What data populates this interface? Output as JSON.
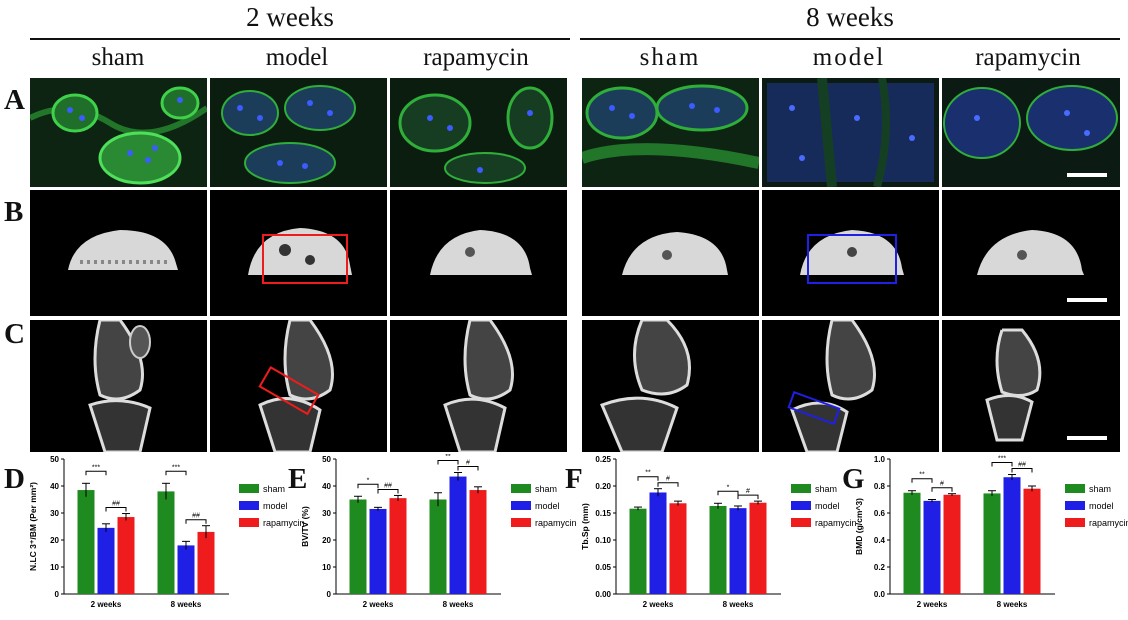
{
  "figure": {
    "groups": [
      "2 weeks",
      "8 weeks"
    ],
    "columns": [
      "sham",
      "model",
      "rapamycin",
      "sham",
      "model",
      "rapamycin"
    ],
    "rows": [
      "A",
      "B",
      "C"
    ]
  },
  "colors": {
    "sham": "#1f8a1f",
    "model": "#1f1fe6",
    "rapamycin": "#ee1c1c",
    "fluor_green": "#2fae3a",
    "fluor_blue": "#2546d6"
  },
  "chart_data": [
    {
      "panel": "D",
      "type": "bar",
      "ylabel": "N.LC 3⁺/BM (Per mm²)",
      "categories": [
        "2 weeks",
        "8 weeks"
      ],
      "ylim": [
        0,
        50
      ],
      "yticks": [
        "0",
        "10",
        "20",
        "30",
        "40",
        "50"
      ],
      "series": [
        {
          "name": "sham",
          "values": [
            38.5,
            38
          ],
          "errors": [
            2.5,
            3
          ]
        },
        {
          "name": "model",
          "values": [
            24.5,
            18
          ],
          "errors": [
            1.5,
            1.5
          ]
        },
        {
          "name": "rapamycin",
          "values": [
            28.5,
            23
          ],
          "errors": [
            1.3,
            2.3
          ]
        }
      ],
      "annotations": [
        {
          "group": "2 weeks",
          "pair": [
            "sham",
            "model"
          ],
          "label": "***"
        },
        {
          "group": "2 weeks",
          "pair": [
            "model",
            "rapamycin"
          ],
          "label": "##"
        },
        {
          "group": "8 weeks",
          "pair": [
            "sham",
            "model"
          ],
          "label": "***"
        },
        {
          "group": "8 weeks",
          "pair": [
            "model",
            "rapamycin"
          ],
          "label": "##"
        }
      ]
    },
    {
      "panel": "E",
      "type": "bar",
      "ylabel": "BV/TV (%)",
      "categories": [
        "2 weeks",
        "8 weeks"
      ],
      "ylim": [
        0,
        50
      ],
      "yticks": [
        "0",
        "10",
        "20",
        "30",
        "40",
        "50"
      ],
      "series": [
        {
          "name": "sham",
          "values": [
            35,
            35
          ],
          "errors": [
            1.2,
            2.5
          ]
        },
        {
          "name": "model",
          "values": [
            31.5,
            43.5
          ],
          "errors": [
            0.6,
            1.5
          ]
        },
        {
          "name": "rapamycin",
          "values": [
            35.5,
            38.5
          ],
          "errors": [
            1,
            1.2
          ]
        }
      ],
      "annotations": [
        {
          "group": "2 weeks",
          "pair": [
            "sham",
            "model"
          ],
          "label": "*"
        },
        {
          "group": "2 weeks",
          "pair": [
            "model",
            "rapamycin"
          ],
          "label": "##"
        },
        {
          "group": "8 weeks",
          "pair": [
            "sham",
            "model"
          ],
          "label": "**"
        },
        {
          "group": "8 weeks",
          "pair": [
            "model",
            "rapamycin"
          ],
          "label": "#"
        }
      ]
    },
    {
      "panel": "F",
      "type": "bar",
      "ylabel": "Tb.Sp (mm)",
      "categories": [
        "2 weeks",
        "8 weeks"
      ],
      "ylim": [
        0,
        0.25
      ],
      "yticks": [
        "0.00",
        "0.05",
        "0.10",
        "0.15",
        "0.20",
        "0.25"
      ],
      "series": [
        {
          "name": "sham",
          "values": [
            0.158,
            0.163
          ],
          "errors": [
            0.003,
            0.005
          ]
        },
        {
          "name": "model",
          "values": [
            0.188,
            0.159
          ],
          "errors": [
            0.007,
            0.004
          ]
        },
        {
          "name": "rapamycin",
          "values": [
            0.168,
            0.169
          ],
          "errors": [
            0.004,
            0.003
          ]
        }
      ],
      "annotations": [
        {
          "group": "2 weeks",
          "pair": [
            "sham",
            "model"
          ],
          "label": "**"
        },
        {
          "group": "2 weeks",
          "pair": [
            "model",
            "rapamycin"
          ],
          "label": "#"
        },
        {
          "group": "8 weeks",
          "pair": [
            "sham",
            "model"
          ],
          "label": "*"
        },
        {
          "group": "8 weeks",
          "pair": [
            "model",
            "rapamycin"
          ],
          "label": "#"
        }
      ]
    },
    {
      "panel": "G",
      "type": "bar",
      "ylabel": "BMD (g/cm^3)",
      "categories": [
        "2 weeks",
        "8 weeks"
      ],
      "ylim": [
        0,
        1.0
      ],
      "yticks": [
        "0.0",
        "0.2",
        "0.4",
        "0.6",
        "0.8",
        "1.0"
      ],
      "series": [
        {
          "name": "sham",
          "values": [
            0.75,
            0.745
          ],
          "errors": [
            0.015,
            0.02
          ]
        },
        {
          "name": "model",
          "values": [
            0.69,
            0.865
          ],
          "errors": [
            0.01,
            0.02
          ]
        },
        {
          "name": "rapamycin",
          "values": [
            0.735,
            0.78
          ],
          "errors": [
            0.008,
            0.02
          ]
        }
      ],
      "annotations": [
        {
          "group": "2 weeks",
          "pair": [
            "sham",
            "model"
          ],
          "label": "**"
        },
        {
          "group": "2 weeks",
          "pair": [
            "model",
            "rapamycin"
          ],
          "label": "#"
        },
        {
          "group": "8 weeks",
          "pair": [
            "sham",
            "model"
          ],
          "label": "***"
        },
        {
          "group": "8 weeks",
          "pair": [
            "model",
            "rapamycin"
          ],
          "label": "##"
        }
      ]
    }
  ]
}
